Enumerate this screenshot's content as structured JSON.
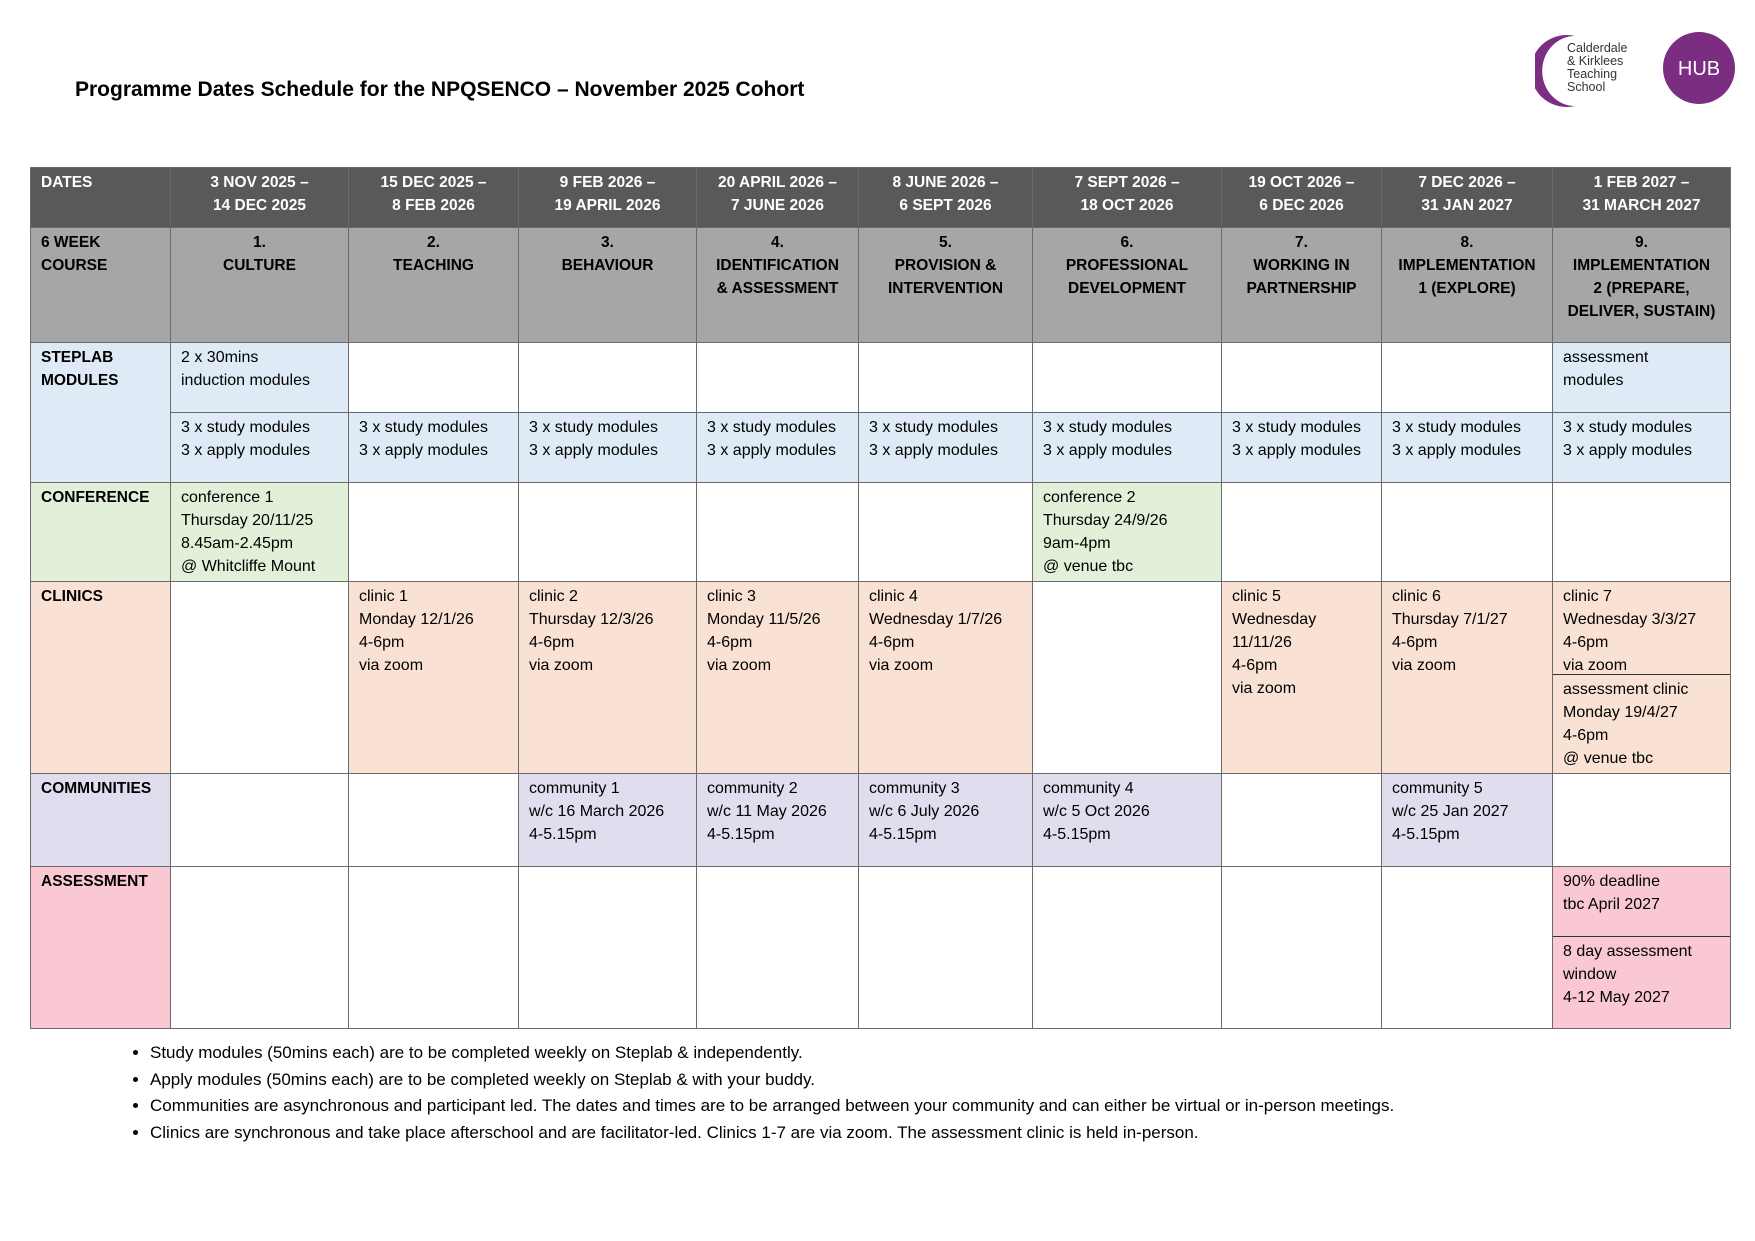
{
  "title": "Programme Dates Schedule for the NPQSENCO – November 2025 Cohort",
  "logo": {
    "text": "Calderdale & Kirklees Teaching School",
    "badge": "HUB",
    "color": "#7b2d82"
  },
  "headers": [
    "DATES",
    "3 NOV 2025 –\n14 DEC 2025",
    "15 DEC 2025 –\n8 FEB 2026",
    "9 FEB 2026 –\n19 APRIL 2026",
    "20 APRIL 2026 –\n7 JUNE 2026",
    "8 JUNE 2026 –\n6 SEPT 2026",
    "7 SEPT 2026 –\n18 OCT 2026",
    "19 OCT 2026 –\n6 DEC 2026",
    "7 DEC 2026 –\n31 JAN 2027",
    "1 FEB 2027 –\n31 MARCH 2027"
  ],
  "course": [
    "6 WEEK\nCOURSE",
    "1.\nCULTURE",
    "2.\nTEACHING",
    "3.\nBEHAVIOUR",
    "4.\nIDENTIFICATION\n& ASSESSMENT",
    "5.\nPROVISION &\nINTERVENTION",
    "6.\nPROFESSIONAL\nDEVELOPMENT",
    "7.\nWORKING IN\nPARTNERSHIP",
    "8.\nIMPLEMENTATION\n1 (EXPLORE)",
    "9.\nIMPLEMENTATION\n2 (PREPARE,\nDELIVER, SUSTAIN)"
  ],
  "steplab": {
    "label": "STEPLAB\nMODULES",
    "top": [
      "2 x 30mins\ninduction modules",
      "",
      "",
      "",
      "",
      "",
      "",
      "",
      "assessment\nmodules"
    ],
    "bottom": [
      "3 x study modules\n3 x apply modules",
      "3 x study modules\n3 x apply modules",
      "3 x study modules\n3 x apply modules",
      "3 x study modules\n3 x apply modules",
      "3 x study modules\n3 x apply modules",
      "3 x study modules\n3 x apply modules",
      "3 x study modules\n3 x apply modules",
      "3 x study modules\n3 x apply modules",
      "3 x study modules\n3 x apply modules"
    ]
  },
  "conference": {
    "label": "CONFERENCE",
    "cells": [
      "conference 1\nThursday 20/11/25\n8.45am-2.45pm\n@ Whitcliffe Mount",
      "",
      "",
      "",
      "",
      "conference 2\nThursday 24/9/26\n9am-4pm\n@ venue tbc",
      "",
      "",
      ""
    ]
  },
  "clinics": {
    "label": "CLINICS",
    "cells": [
      "",
      "clinic 1\nMonday 12/1/26\n4-6pm\nvia zoom",
      "clinic 2\nThursday 12/3/26\n4-6pm\nvia zoom",
      "clinic 3\nMonday 11/5/26\n4-6pm\nvia zoom",
      "clinic 4\nWednesday 1/7/26\n4-6pm\nvia zoom",
      "",
      "clinic 5\nWednesday\n11/11/26\n4-6pm\nvia zoom",
      "clinic 6\nThursday 7/1/27\n4-6pm\nvia zoom"
    ],
    "last_top": "clinic 7\nWednesday 3/3/27\n4-6pm\nvia zoom",
    "last_bottom": "assessment clinic\nMonday 19/4/27\n4-6pm\n@ venue tbc"
  },
  "communities": {
    "label": "COMMUNITIES",
    "cells": [
      "",
      "",
      "community 1\nw/c 16 March 2026\n4-5.15pm",
      "community 2\nw/c 11 May 2026\n4-5.15pm",
      "community 3\nw/c 6 July 2026\n4-5.15pm",
      "community 4\nw/c 5 Oct 2026\n4-5.15pm",
      "",
      "community 5\nw/c 25 Jan 2027\n4-5.15pm",
      ""
    ]
  },
  "assessment": {
    "label": "ASSESSMENT",
    "top": "90% deadline\ntbc April 2027",
    "bottom": "8 day assessment\nwindow\n4-12 May 2027"
  },
  "notes": [
    "Study modules (50mins each) are to be completed weekly on Steplab & independently.",
    "Apply modules (50mins each) are to be completed weekly on Steplab & with your buddy.",
    "Communities are asynchronous and participant led. The dates and times are to be arranged between your community and can either be virtual or in-person meetings.",
    "Clinics are synchronous and take place afterschool and are facilitator-led.  Clinics 1-7 are via zoom.  The assessment clinic is held in-person."
  ]
}
